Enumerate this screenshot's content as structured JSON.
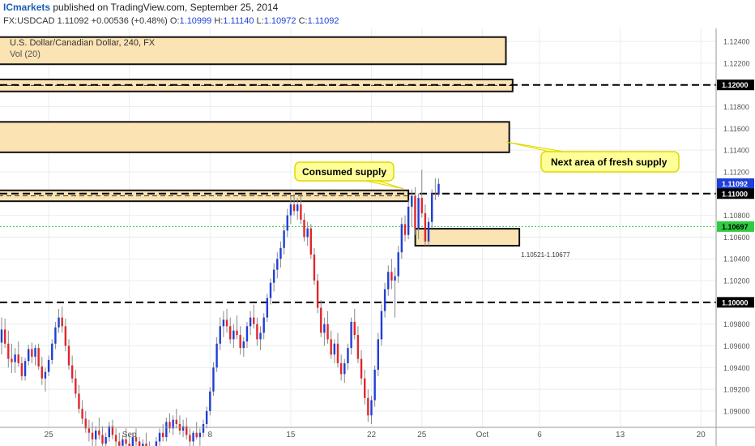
{
  "header": {
    "brand": "ICmarkets",
    "published": "published on TradingView.com, September 25, 2014"
  },
  "ohlc": {
    "symbol": "FX:USDCAD",
    "last": "1.11092",
    "change": "+0.00536 (+0.48%)",
    "o_label": "O:",
    "o": "1.10999",
    "h_label": "H:",
    "h": "1.11140",
    "l_label": "L:",
    "l": "1.10972",
    "c_label": "C:",
    "c": "1.11092"
  },
  "colors": {
    "background": "#ffffff",
    "grid": "#e8eef2",
    "bull": "#1f3fd6",
    "bear": "#e2262b",
    "zone_fill": "#fbe3b4",
    "zone_stroke": "#111111",
    "callout_fill": "#ffff99",
    "callout_stroke": "#e0d800",
    "green_line": "#2ecc40",
    "brand": "#1a5fb4"
  },
  "chart_data": {
    "type": "candlestick",
    "title": "U.S. Dollar/Canadian Dollar, 240, FX",
    "subtitle": "Vol (20)",
    "ylim": [
      1.0885,
      1.1252
    ],
    "y_ticks": [
      1.124,
      1.122,
      1.12,
      1.118,
      1.116,
      1.114,
      1.112,
      1.11,
      1.108,
      1.106,
      1.104,
      1.102,
      1.1,
      1.098,
      1.096,
      1.094,
      1.092,
      1.09
    ],
    "y_tick_labels": [
      "1.12400",
      "1.12200",
      "1.12000",
      "1.11800",
      "1.11600",
      "1.11400",
      "1.11200",
      "1.11000",
      "1.10800",
      "1.10600",
      "1.10400",
      "1.10200",
      "1.10000",
      "1.09800",
      "1.09600",
      "1.09400",
      "1.09200",
      "1.09000"
    ],
    "x_ticks": [
      {
        "label": "25",
        "bar": 14
      },
      {
        "label": "Sep",
        "bar": 38
      },
      {
        "label": "8",
        "bar": 62
      },
      {
        "label": "15",
        "bar": 86
      },
      {
        "label": "22",
        "bar": 110
      },
      {
        "label": "25",
        "bar": 125
      },
      {
        "label": "Oct",
        "bar": 143
      },
      {
        "label": "6",
        "bar": 160
      },
      {
        "label": "13",
        "bar": 184
      },
      {
        "label": "20",
        "bar": 208
      }
    ],
    "x_bar_count": 222,
    "price_tags": [
      {
        "label": "1.11092",
        "value": 1.11092,
        "style": "current"
      },
      {
        "label": "1.11000",
        "value": 1.11,
        "style": "level"
      },
      {
        "label": "1.10697",
        "value": 1.10697,
        "style": "green"
      },
      {
        "label": "1.12000",
        "value": 1.12,
        "style": "level"
      },
      {
        "label": "1.10000",
        "value": 1.1,
        "style": "level"
      }
    ],
    "horizontal_lines": [
      {
        "value": 1.12,
        "style": "dashed-black"
      },
      {
        "value": 1.11,
        "style": "dashed-black"
      },
      {
        "value": 1.1,
        "style": "dashed-black"
      },
      {
        "value": 1.10697,
        "style": "dotted-green"
      }
    ],
    "zones": [
      {
        "name": "top-zone",
        "from_bar": 0,
        "to_bar": 150,
        "top": 1.1244,
        "bottom": 1.1219,
        "dashed_mid": false
      },
      {
        "name": "1.12-zone",
        "from_bar": 0,
        "to_bar": 152,
        "top": 1.1205,
        "bottom": 1.1194,
        "dashed_mid": true
      },
      {
        "name": "fresh-supply-zone",
        "from_bar": 0,
        "to_bar": 151,
        "top": 1.1166,
        "bottom": 1.1138,
        "dashed_mid": false
      },
      {
        "name": "consumed-supply-zone",
        "from_bar": 0,
        "to_bar": 121,
        "top": 1.1103,
        "bottom": 1.1093,
        "dashed_mid": true
      },
      {
        "name": "demand-zone",
        "from_bar": 124,
        "to_bar": 154,
        "top": 1.10677,
        "bottom": 1.10521,
        "dashed_mid": false
      }
    ],
    "annotations": [
      {
        "text": "Consumed supply",
        "kind": "callout"
      },
      {
        "text": "Next area of fresh supply",
        "kind": "callout"
      },
      {
        "text": "1.10521-1.10677",
        "kind": "label"
      }
    ],
    "candles": [
      [
        1.0963,
        1.0986,
        1.0952,
        1.0975
      ],
      [
        1.0975,
        1.0985,
        1.0958,
        1.0962
      ],
      [
        1.0962,
        1.0974,
        1.094,
        1.0948
      ],
      [
        1.0948,
        1.0962,
        1.0935,
        1.0945
      ],
      [
        1.0945,
        1.0958,
        1.0935,
        1.0952
      ],
      [
        1.0952,
        1.0964,
        1.0941,
        1.0944
      ],
      [
        1.0944,
        1.095,
        1.0928,
        1.0932
      ],
      [
        1.0932,
        1.0949,
        1.0928,
        1.0946
      ],
      [
        1.0946,
        1.0961,
        1.0942,
        1.0957
      ],
      [
        1.0957,
        1.0963,
        1.0944,
        1.095
      ],
      [
        1.095,
        1.0961,
        1.0942,
        1.0958
      ],
      [
        1.0958,
        1.0962,
        1.0938,
        1.0941
      ],
      [
        1.0941,
        1.095,
        1.0924,
        1.093
      ],
      [
        1.093,
        1.094,
        1.0918,
        1.0936
      ],
      [
        1.0936,
        1.0951,
        1.0932,
        1.0947
      ],
      [
        1.0947,
        1.0966,
        1.0943,
        1.0962
      ],
      [
        1.0962,
        1.0982,
        1.0957,
        1.0977
      ],
      [
        1.0977,
        1.0994,
        1.0972,
        1.0986
      ],
      [
        1.0986,
        1.0996,
        1.0972,
        1.0978
      ],
      [
        1.0978,
        1.0985,
        1.0955,
        1.096
      ],
      [
        1.096,
        1.0966,
        1.0938,
        1.0942
      ],
      [
        1.0942,
        1.0951,
        1.0926,
        1.093
      ],
      [
        1.093,
        1.0938,
        1.0912,
        1.0916
      ],
      [
        1.0916,
        1.0924,
        1.0898,
        1.0902
      ],
      [
        1.0902,
        1.091,
        1.0888,
        1.0893
      ],
      [
        1.0893,
        1.09,
        1.088,
        1.0884
      ],
      [
        1.0884,
        1.0892,
        1.0872,
        1.088
      ],
      [
        1.088,
        1.089,
        1.0868,
        1.0874
      ],
      [
        1.0874,
        1.0886,
        1.0866,
        1.0882
      ],
      [
        1.0882,
        1.0894,
        1.0874,
        1.0878
      ],
      [
        1.0878,
        1.0886,
        1.0866,
        1.087
      ],
      [
        1.087,
        1.088,
        1.0862,
        1.0876
      ],
      [
        1.0876,
        1.089,
        1.0872,
        1.0886
      ],
      [
        1.0886,
        1.0892,
        1.0874,
        1.0878
      ],
      [
        1.0878,
        1.0884,
        1.0866,
        1.0872
      ],
      [
        1.0872,
        1.088,
        1.0862,
        1.0868
      ],
      [
        1.0868,
        1.0878,
        1.086,
        1.0874
      ],
      [
        1.0874,
        1.0884,
        1.0868,
        1.087
      ],
      [
        1.087,
        1.0878,
        1.086,
        1.0866
      ],
      [
        1.0866,
        1.088,
        1.0862,
        1.0876
      ],
      [
        1.0876,
        1.0884,
        1.0868,
        1.0872
      ],
      [
        1.0872,
        1.0876,
        1.086,
        1.0864
      ],
      [
        1.0864,
        1.0874,
        1.0858,
        1.087
      ],
      [
        1.087,
        1.088,
        1.0864,
        1.0866
      ],
      [
        1.0866,
        1.0872,
        1.0856,
        1.086
      ],
      [
        1.086,
        1.0868,
        1.0852,
        1.0864
      ],
      [
        1.0864,
        1.0876,
        1.086,
        1.0872
      ],
      [
        1.0872,
        1.0884,
        1.0868,
        1.088
      ],
      [
        1.088,
        1.0888,
        1.0872,
        1.0876
      ],
      [
        1.0876,
        1.0894,
        1.0872,
        1.089
      ],
      [
        1.089,
        1.0898,
        1.088,
        1.0884
      ],
      [
        1.0884,
        1.0896,
        1.0878,
        1.0892
      ],
      [
        1.0892,
        1.0902,
        1.0884,
        1.0888
      ],
      [
        1.0888,
        1.0896,
        1.0878,
        1.0882
      ],
      [
        1.0882,
        1.0892,
        1.0876,
        1.0886
      ],
      [
        1.0886,
        1.0894,
        1.0874,
        1.0878
      ],
      [
        1.0878,
        1.0884,
        1.0866,
        1.0872
      ],
      [
        1.0872,
        1.0882,
        1.0866,
        1.088
      ],
      [
        1.088,
        1.089,
        1.0874,
        1.0876
      ],
      [
        1.0876,
        1.0884,
        1.0868,
        1.088
      ],
      [
        1.088,
        1.0892,
        1.0876,
        1.0888
      ],
      [
        1.0888,
        1.0904,
        1.0884,
        1.09
      ],
      [
        1.09,
        1.0922,
        1.0896,
        1.0918
      ],
      [
        1.0918,
        1.0945,
        1.0914,
        1.094
      ],
      [
        1.094,
        1.0968,
        1.0936,
        1.0962
      ],
      [
        1.0962,
        1.0986,
        1.0956,
        1.0978
      ],
      [
        1.0978,
        1.0992,
        1.0968,
        1.0984
      ],
      [
        1.0984,
        1.0994,
        1.0972,
        1.0978
      ],
      [
        1.0978,
        1.0986,
        1.0962,
        1.0966
      ],
      [
        1.0966,
        1.098,
        1.0958,
        1.0974
      ],
      [
        1.0974,
        1.0988,
        1.0966,
        1.097
      ],
      [
        1.097,
        1.0978,
        1.0952,
        1.0958
      ],
      [
        1.0958,
        1.0968,
        1.095,
        1.0964
      ],
      [
        1.0964,
        1.0982,
        1.0958,
        1.0978
      ],
      [
        1.0978,
        1.0992,
        1.097,
        1.0986
      ],
      [
        1.0986,
        1.0998,
        1.0976,
        1.098
      ],
      [
        1.098,
        1.0986,
        1.096,
        1.0966
      ],
      [
        1.0966,
        1.0978,
        1.0956,
        1.0972
      ],
      [
        1.0972,
        1.099,
        1.0966,
        1.0986
      ],
      [
        1.0986,
        1.1008,
        1.0982,
        1.1004
      ],
      [
        1.1004,
        1.1022,
        1.0998,
        1.1018
      ],
      [
        1.1018,
        1.1036,
        1.101,
        1.103
      ],
      [
        1.103,
        1.1046,
        1.1022,
        1.104
      ],
      [
        1.104,
        1.1056,
        1.1032,
        1.105
      ],
      [
        1.105,
        1.1072,
        1.1044,
        1.1066
      ],
      [
        1.1066,
        1.1086,
        1.106,
        1.108
      ],
      [
        1.108,
        1.1098,
        1.1072,
        1.109
      ],
      [
        1.109,
        1.11,
        1.108,
        1.1084
      ],
      [
        1.1084,
        1.1096,
        1.1076,
        1.109
      ],
      [
        1.109,
        1.1098,
        1.1072,
        1.1076
      ],
      [
        1.1076,
        1.1082,
        1.1056,
        1.106
      ],
      [
        1.106,
        1.1074,
        1.1052,
        1.1068
      ],
      [
        1.1068,
        1.1072,
        1.104,
        1.1044
      ],
      [
        1.1044,
        1.105,
        1.1016,
        1.102
      ],
      [
        1.102,
        1.1026,
        1.099,
        1.0995
      ],
      [
        1.0995,
        1.1002,
        1.0968,
        1.0972
      ],
      [
        1.0972,
        1.0986,
        1.096,
        1.098
      ],
      [
        1.098,
        1.0992,
        1.0962,
        1.0966
      ],
      [
        1.0966,
        1.0974,
        1.0948,
        1.0952
      ],
      [
        1.0952,
        1.0966,
        1.0944,
        1.0962
      ],
      [
        1.0962,
        1.0972,
        1.094,
        1.0944
      ],
      [
        1.0944,
        1.0952,
        1.0928,
        1.0934
      ],
      [
        1.0934,
        1.0948,
        1.0926,
        1.0944
      ],
      [
        1.0944,
        1.0962,
        1.0938,
        1.0958
      ],
      [
        1.0958,
        1.0986,
        1.0952,
        1.0982
      ],
      [
        1.0982,
        1.0994,
        1.0966,
        1.097
      ],
      [
        1.097,
        1.0978,
        1.0944,
        1.0948
      ],
      [
        1.0948,
        1.0956,
        1.0924,
        1.093
      ],
      [
        1.093,
        1.0938,
        1.0906,
        1.0912
      ],
      [
        1.0912,
        1.092,
        1.089,
        1.0896
      ],
      [
        1.0896,
        1.0914,
        1.0888,
        1.091
      ],
      [
        1.091,
        1.0942,
        1.0904,
        1.0938
      ],
      [
        1.0938,
        1.0972,
        1.0932,
        1.0966
      ],
      [
        1.0966,
        1.0998,
        1.096,
        1.0992
      ],
      [
        1.0992,
        1.1018,
        1.0986,
        1.1012
      ],
      [
        1.1012,
        1.1034,
        1.1006,
        1.1028
      ],
      [
        1.1028,
        1.104,
        1.1012,
        1.102
      ],
      [
        1.102,
        1.1032,
        1.0986,
        1.1024
      ],
      [
        1.1024,
        1.1052,
        1.1018,
        1.1046
      ],
      [
        1.1046,
        1.1078,
        1.104,
        1.1072
      ],
      [
        1.1072,
        1.108,
        1.1056,
        1.1062
      ],
      [
        1.1062,
        1.1094,
        1.1058,
        1.1088
      ],
      [
        1.1088,
        1.1104,
        1.107,
        1.1098
      ],
      [
        1.1098,
        1.1106,
        1.1062,
        1.1068
      ],
      [
        1.1068,
        1.11,
        1.1058,
        1.1096
      ],
      [
        1.1096,
        1.1122,
        1.1078,
        1.1082
      ],
      [
        1.1082,
        1.109,
        1.1052,
        1.1056
      ],
      [
        1.1056,
        1.1078,
        1.1052,
        1.1074
      ],
      [
        1.1074,
        1.1104,
        1.1068,
        1.11
      ],
      [
        1.11,
        1.1114,
        1.1094,
        1.1099
      ],
      [
        1.1099,
        1.1114,
        1.1097,
        1.1109
      ]
    ]
  }
}
